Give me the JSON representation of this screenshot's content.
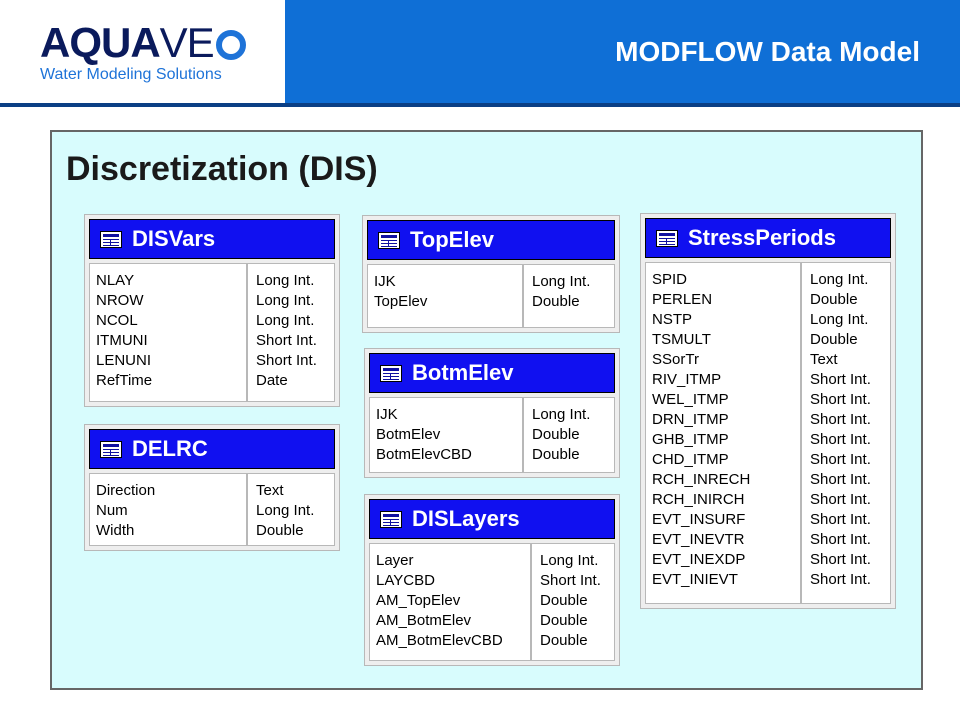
{
  "header": {
    "logo_main": "AQUA",
    "logo_rest": "VE",
    "tagline": "Water Modeling Solutions",
    "title": "MODFLOW Data Model"
  },
  "colors": {
    "header_bg": "#0f6fd6",
    "panel_bg": "#d8fcfd",
    "table_header": "#1010f0"
  },
  "panel": {
    "title": "Discretization (DIS)"
  },
  "tables": {
    "disvars": {
      "name": "DISVars",
      "fields": [
        "NLAY",
        "NROW",
        "NCOL",
        "ITMUNI",
        "LENUNI",
        "RefTime"
      ],
      "types": [
        "Long Int.",
        "Long Int.",
        "Long Int.",
        "Short Int.",
        "Short Int.",
        "Date"
      ]
    },
    "delrc": {
      "name": "DELRC",
      "fields": [
        "Direction",
        "Num",
        "Width"
      ],
      "types": [
        "Text",
        "Long Int.",
        "Double"
      ]
    },
    "topelev": {
      "name": "TopElev",
      "fields": [
        "IJK",
        "TopElev"
      ],
      "types": [
        "Long Int.",
        "Double"
      ]
    },
    "botmelev": {
      "name": "BotmElev",
      "fields": [
        "IJK",
        "BotmElev",
        "BotmElevCBD"
      ],
      "types": [
        "Long Int.",
        "Double",
        "Double"
      ]
    },
    "dislayers": {
      "name": "DISLayers",
      "fields": [
        "Layer",
        "LAYCBD",
        "AM_TopElev",
        "AM_BotmElev",
        "AM_BotmElevCBD"
      ],
      "types": [
        "Long Int.",
        "Short Int.",
        "Double",
        "Double",
        "Double"
      ]
    },
    "stressperiods": {
      "name": "StressPeriods",
      "fields": [
        "SPID",
        "PERLEN",
        "NSTP",
        "TSMULT",
        "SSorTr",
        "RIV_ITMP",
        "WEL_ITMP",
        "DRN_ITMP",
        "GHB_ITMP",
        "CHD_ITMP",
        "RCH_INRECH",
        "RCH_INIRCH",
        "EVT_INSURF",
        "EVT_INEVTR",
        "EVT_INEXDP",
        "EVT_INIEVT"
      ],
      "types": [
        "Long Int.",
        "Double",
        "Long Int.",
        "Double",
        "Text",
        "Short Int.",
        "Short Int.",
        "Short Int.",
        "Short Int.",
        "Short Int.",
        "Short Int.",
        "Short Int.",
        "Short Int.",
        "Short Int.",
        "Short Int.",
        "Short Int."
      ]
    }
  }
}
